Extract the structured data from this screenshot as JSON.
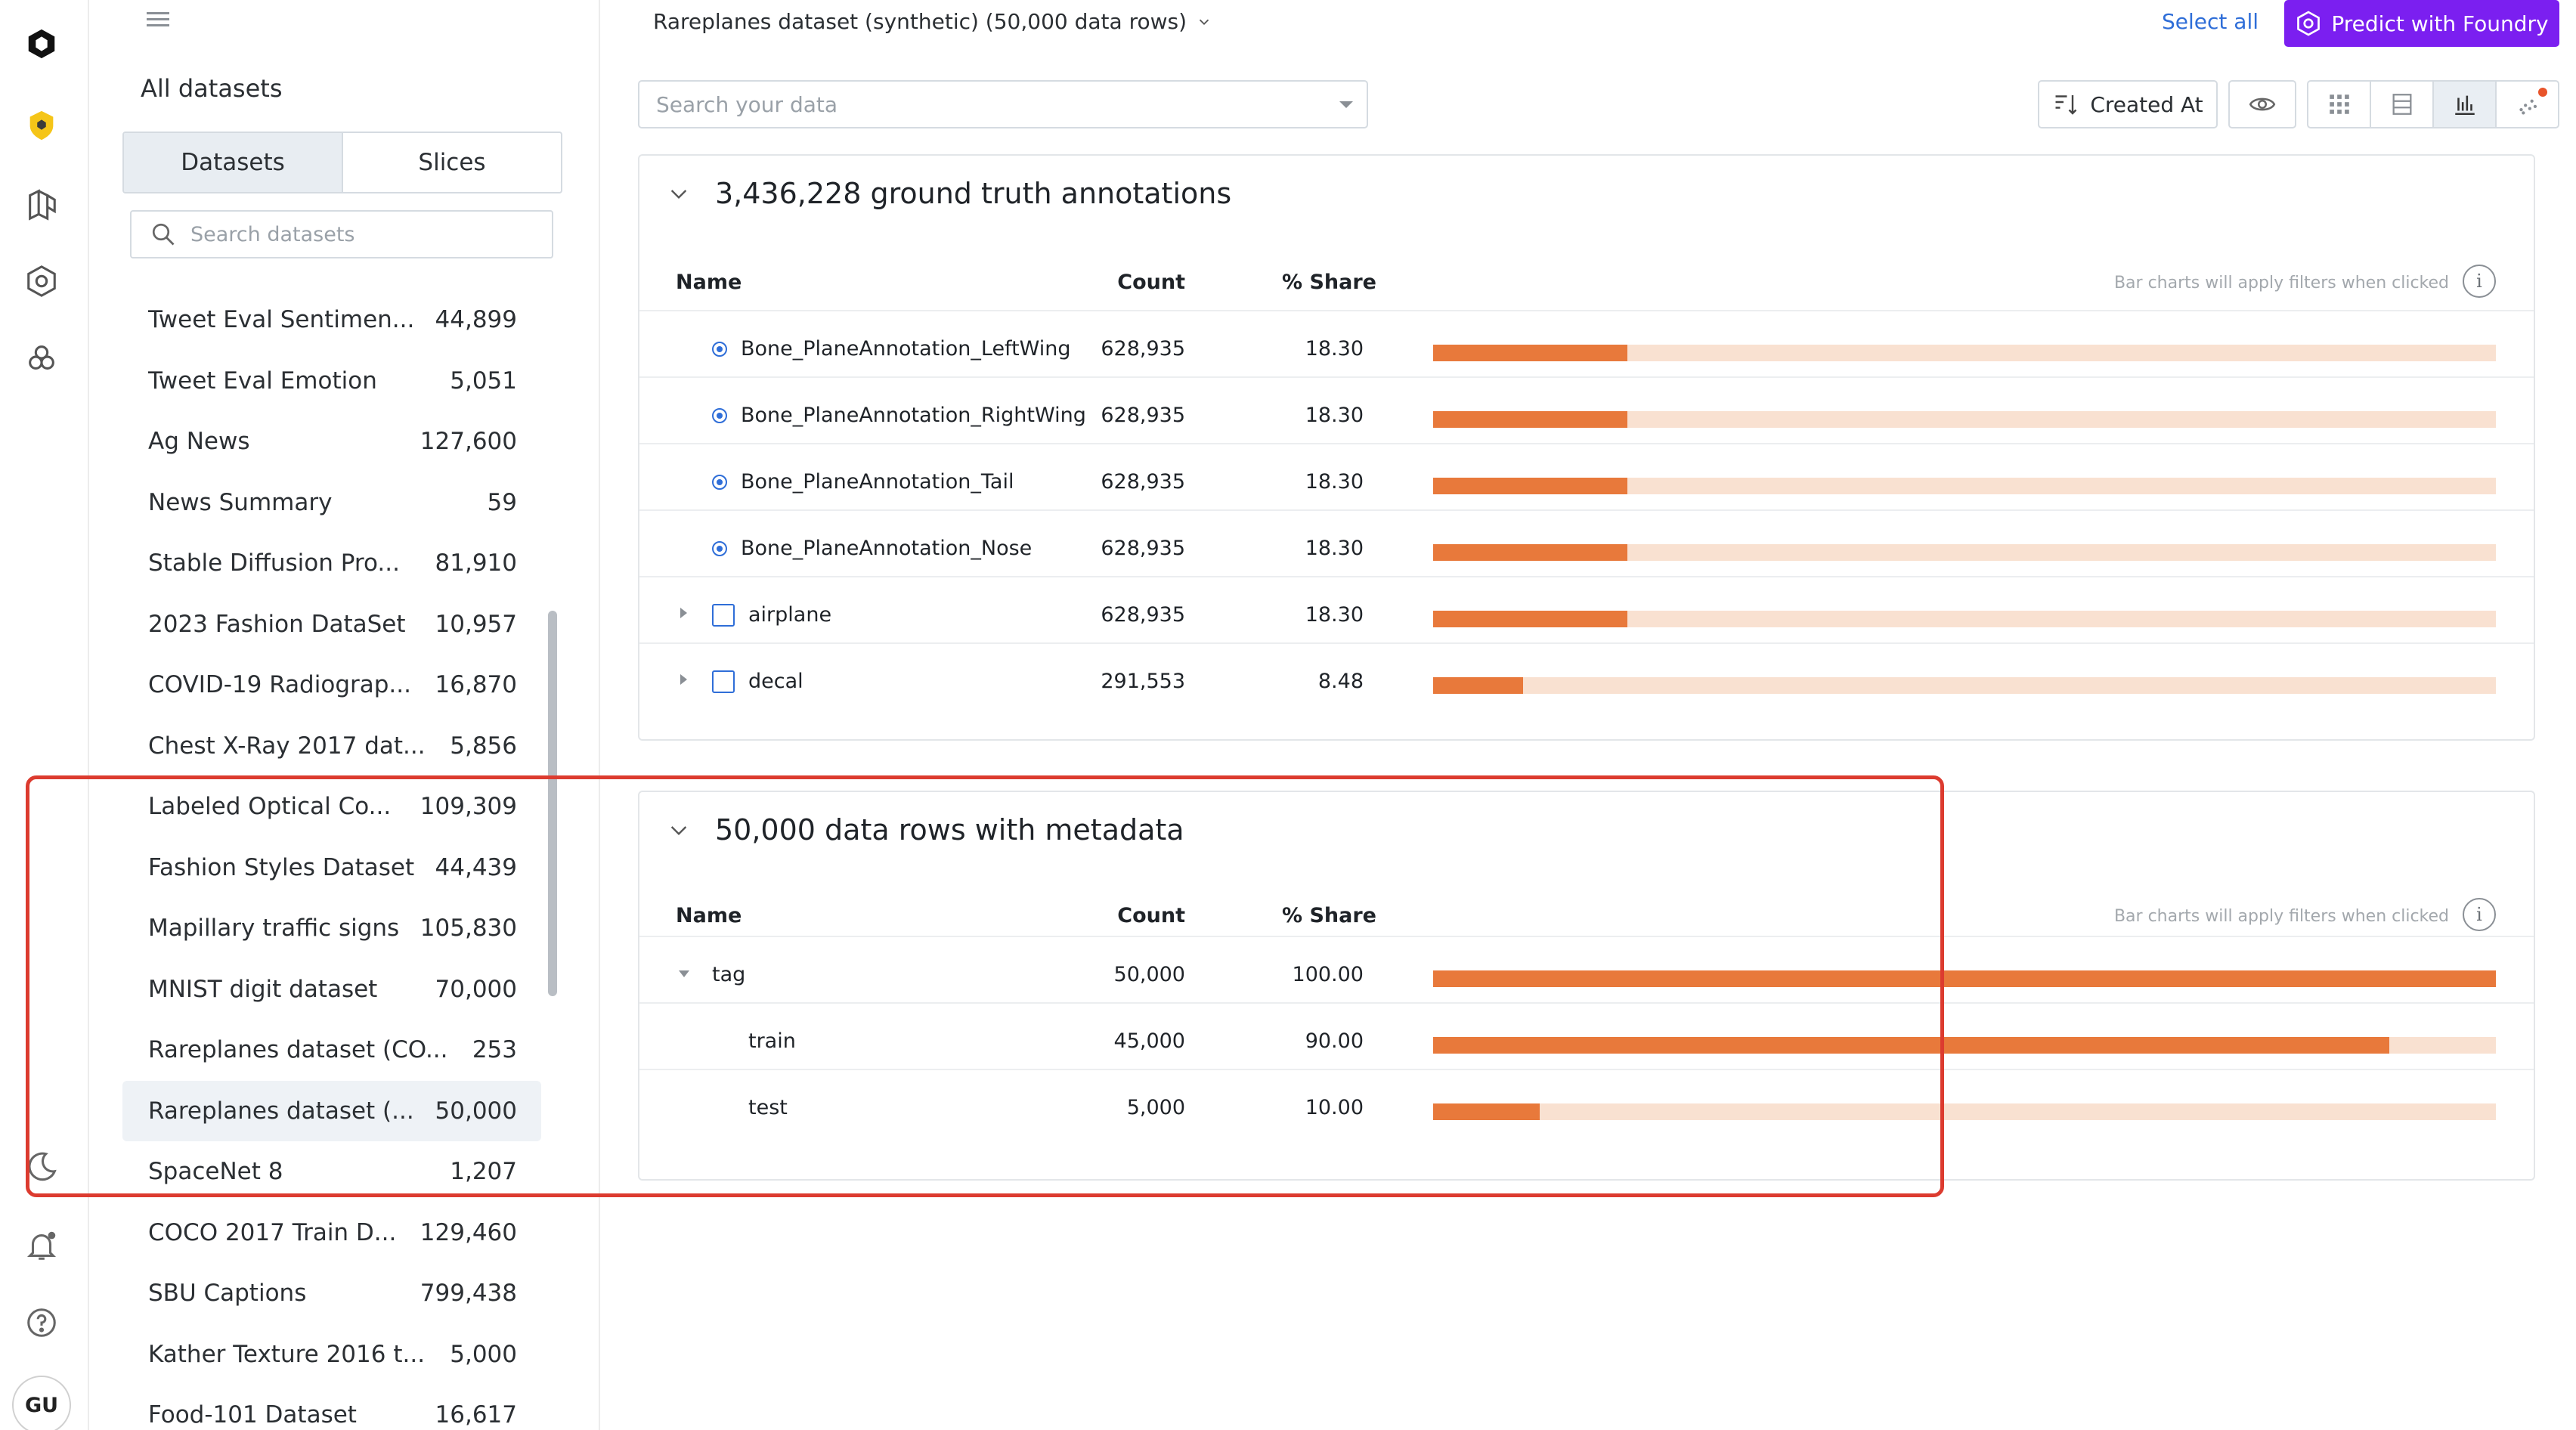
{
  "rail": {
    "icons": [
      "logo-cube-icon",
      "shield-icon",
      "catalog-icon",
      "model-icon",
      "annotate-icon"
    ],
    "bottom_icons": [
      "moon-icon",
      "bell-icon",
      "help-icon"
    ],
    "avatar": "GU"
  },
  "sidebar": {
    "title": "All datasets",
    "tabs": [
      "Datasets",
      "Slices"
    ],
    "search_placeholder": "Search datasets",
    "items": [
      {
        "name": "Tweet Eval Sentimen...",
        "count": "44,899"
      },
      {
        "name": "Tweet Eval Emotion",
        "count": "5,051"
      },
      {
        "name": "Ag News",
        "count": "127,600"
      },
      {
        "name": "News Summary",
        "count": "59"
      },
      {
        "name": "Stable Diffusion Pro...",
        "count": "81,910"
      },
      {
        "name": "2023 Fashion DataSet",
        "count": "10,957"
      },
      {
        "name": "COVID-19 Radiograp...",
        "count": "16,870"
      },
      {
        "name": "Chest X-Ray 2017 dat...",
        "count": "5,856"
      },
      {
        "name": "Labeled Optical Co...",
        "count": "109,309"
      },
      {
        "name": "Fashion Styles Dataset",
        "count": "44,439"
      },
      {
        "name": "Mapillary traffic signs",
        "count": "105,830"
      },
      {
        "name": "MNIST digit dataset",
        "count": "70,000"
      },
      {
        "name": "Rareplanes dataset (CO...",
        "count": "253"
      },
      {
        "name": "Rareplanes dataset (...",
        "count": "50,000",
        "selected": true
      },
      {
        "name": "SpaceNet 8",
        "count": "1,207"
      },
      {
        "name": "COCO 2017 Train D...",
        "count": "129,460"
      },
      {
        "name": "SBU Captions",
        "count": "799,438"
      },
      {
        "name": "Kather Texture 2016 t...",
        "count": "5,000"
      },
      {
        "name": "Food-101 Dataset",
        "count": "16,617"
      }
    ]
  },
  "header": {
    "dataset_title": "Rareplanes dataset (synthetic) (50,000 data rows)",
    "select_all": "Select all",
    "predict_button": "Predict with Foundry",
    "search_placeholder": "Search your data",
    "sort_label": "Created At"
  },
  "annotations_panel": {
    "title": "3,436,228 ground truth annotations",
    "col_name": "Name",
    "col_count": "Count",
    "col_share": "% Share",
    "hint": "Bar charts will apply filters when clicked",
    "rows": [
      {
        "name": "Bone_PlaneAnnotation_LeftWing",
        "count": "628,935",
        "share": "18.30",
        "fraction": 0.183,
        "marker": "radio"
      },
      {
        "name": "Bone_PlaneAnnotation_RightWing",
        "count": "628,935",
        "share": "18.30",
        "fraction": 0.183,
        "marker": "radio"
      },
      {
        "name": "Bone_PlaneAnnotation_Tail",
        "count": "628,935",
        "share": "18.30",
        "fraction": 0.183,
        "marker": "radio"
      },
      {
        "name": "Bone_PlaneAnnotation_Nose",
        "count": "628,935",
        "share": "18.30",
        "fraction": 0.183,
        "marker": "radio"
      },
      {
        "name": "airplane",
        "count": "628,935",
        "share": "18.30",
        "fraction": 0.183,
        "marker": "checkbox"
      },
      {
        "name": "decal",
        "count": "291,553",
        "share": "8.48",
        "fraction": 0.0848,
        "marker": "checkbox"
      }
    ]
  },
  "metadata_panel": {
    "title": "50,000 data rows with metadata",
    "col_name": "Name",
    "col_count": "Count",
    "col_share": "% Share",
    "hint": "Bar charts will apply filters when clicked",
    "rows": [
      {
        "name": "tag",
        "count": "50,000",
        "share": "100.00",
        "fraction": 1.0,
        "level": 0
      },
      {
        "name": "train",
        "count": "45,000",
        "share": "90.00",
        "fraction": 0.9,
        "level": 1
      },
      {
        "name": "test",
        "count": "5,000",
        "share": "10.00",
        "fraction": 0.1,
        "level": 1
      }
    ]
  },
  "colors": {
    "bar_fill": "#e8793b",
    "bar_track": "#f9e1d1",
    "accent_purple": "#7b1ff0",
    "link_blue": "#2f6ed8",
    "highlight_red": "#dc3b2f"
  }
}
